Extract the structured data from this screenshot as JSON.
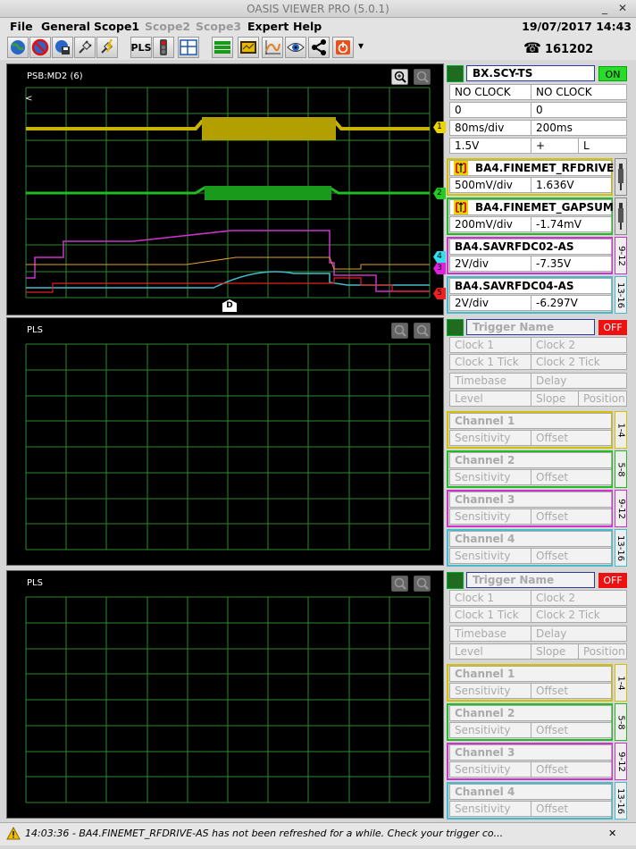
{
  "window": {
    "title": "OASIS VIEWER PRO (5.0.1)",
    "minimize": "_",
    "close": "✕"
  },
  "menu": [
    "File",
    "General",
    "Scope1",
    "Scope2",
    "Scope3",
    "Expert",
    "Help"
  ],
  "datetime": "19/07/2017 14:43",
  "phone": {
    "icon": "☎",
    "number": "161202"
  },
  "toolbar": {
    "pls_label": "PLS",
    "more_label": "▾"
  },
  "scope1": {
    "label": "PSB:MD2 (6)",
    "trigger": {
      "name": "BX.SCY-TS",
      "state": "ON",
      "clock1": "NO CLOCK",
      "clock2": "NO CLOCK",
      "tick1": "0",
      "tick2": "0",
      "timebase": "80ms/div",
      "delay": "200ms",
      "level": "1.5V",
      "slope": "+",
      "position": "L"
    },
    "channels": [
      {
        "name": "BA4.FINEMET_RFDRIVE...",
        "sensitivity": "500mV/div",
        "offset": "1.636V",
        "color": "#d4c200",
        "strip": ""
      },
      {
        "name": "BA4.FINEMET_GAPSUM...",
        "sensitivity": "200mV/div",
        "offset": "-1.74mV",
        "color": "#22bb22",
        "strip": ""
      },
      {
        "name": "BA4.SAVRFDC02-AS",
        "sensitivity": "2V/div",
        "offset": "-7.35V",
        "color": "#cc33cc",
        "strip": "9-12"
      },
      {
        "name": "BA4.SAVRFDC04-AS",
        "sensitivity": "2V/div",
        "offset": "-6.297V",
        "color": "#44bbcc",
        "strip": "13-16"
      }
    ],
    "markers": [
      "1",
      "2",
      "4",
      "3",
      "5"
    ],
    "d_marker": "D",
    "cursor_marker": "<"
  },
  "scope2": {
    "label": "PLS"
  },
  "scope3": {
    "label": "PLS"
  },
  "empty_trigger": {
    "name": "Trigger Name",
    "state": "OFF",
    "clock1": "Clock 1",
    "clock2": "Clock 2",
    "tick1": "Clock 1 Tick",
    "tick2": "Clock 2 Tick",
    "timebase": "Timebase",
    "delay": "Delay",
    "level": "Level",
    "slope": "Slope",
    "position": "Position"
  },
  "empty_channels": [
    {
      "name": "Channel 1",
      "sensitivity": "Sensitivity",
      "offset": "Offset",
      "color": "#d4c200",
      "strip": "1-4"
    },
    {
      "name": "Channel 2",
      "sensitivity": "Sensitivity",
      "offset": "Offset",
      "color": "#22bb22",
      "strip": "5-8"
    },
    {
      "name": "Channel 3",
      "sensitivity": "Sensitivity",
      "offset": "Offset",
      "color": "#cc33cc",
      "strip": "9-12"
    },
    {
      "name": "Channel 4",
      "sensitivity": "Sensitivity",
      "offset": "Offset",
      "color": "#44bbcc",
      "strip": "13-16"
    }
  ],
  "status": {
    "message": "14:03:36 - BA4.FINEMET_RFDRIVE-AS has not been refreshed for a while. Check your trigger co...",
    "icon": "warning-icon",
    "close": "✕"
  }
}
